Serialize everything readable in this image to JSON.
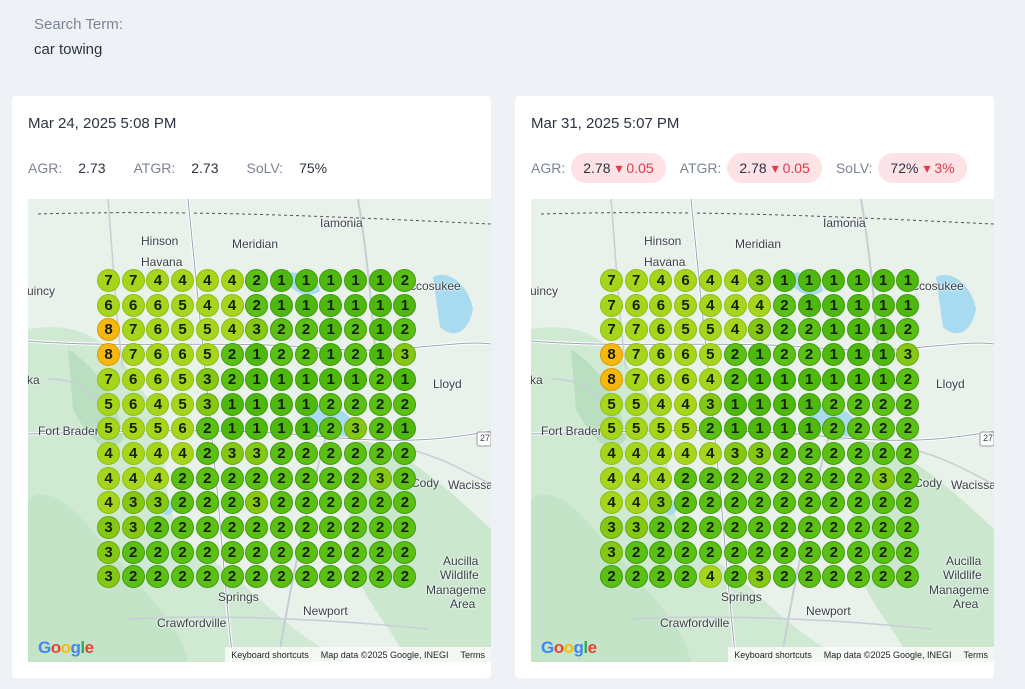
{
  "search": {
    "label": "Search Term:",
    "term": "car towing"
  },
  "cards": [
    {
      "date": "Mar 24, 2025 5:08 PM",
      "metrics": [
        {
          "label": "AGR:",
          "value": "2.73",
          "delta": ""
        },
        {
          "label": "ATGR:",
          "value": "2.73",
          "delta": ""
        },
        {
          "label": "SoLV:",
          "value": "75%",
          "delta": ""
        }
      ],
      "grid": [
        [
          7,
          7,
          4,
          4,
          4,
          4,
          2,
          1,
          1,
          1,
          1,
          1,
          2
        ],
        [
          6,
          6,
          6,
          5,
          4,
          4,
          2,
          1,
          1,
          1,
          1,
          1,
          1
        ],
        [
          8,
          7,
          6,
          5,
          5,
          4,
          3,
          2,
          2,
          1,
          2,
          1,
          2
        ],
        [
          8,
          7,
          6,
          6,
          5,
          2,
          1,
          2,
          2,
          1,
          2,
          1,
          3
        ],
        [
          7,
          6,
          6,
          5,
          3,
          2,
          1,
          1,
          1,
          1,
          1,
          2,
          1
        ],
        [
          5,
          6,
          4,
          5,
          3,
          1,
          1,
          1,
          1,
          2,
          2,
          2,
          2
        ],
        [
          5,
          5,
          5,
          6,
          2,
          1,
          1,
          1,
          1,
          2,
          3,
          2,
          1
        ],
        [
          4,
          4,
          4,
          4,
          2,
          3,
          3,
          2,
          2,
          2,
          2,
          2,
          2
        ],
        [
          4,
          4,
          4,
          2,
          2,
          2,
          2,
          2,
          2,
          2,
          2,
          3,
          2
        ],
        [
          4,
          3,
          3,
          2,
          2,
          2,
          3,
          2,
          2,
          2,
          2,
          2,
          2
        ],
        [
          3,
          3,
          2,
          2,
          2,
          2,
          2,
          2,
          2,
          2,
          2,
          2,
          2
        ],
        [
          3,
          2,
          2,
          2,
          2,
          2,
          2,
          2,
          2,
          2,
          2,
          2,
          2
        ],
        [
          3,
          2,
          2,
          2,
          2,
          2,
          2,
          2,
          2,
          2,
          2,
          2,
          2
        ]
      ]
    },
    {
      "date": "Mar 31, 2025 5:07 PM",
      "metrics": [
        {
          "label": "AGR:",
          "value": "2.78",
          "delta": "0.05"
        },
        {
          "label": "ATGR:",
          "value": "2.78",
          "delta": "0.05"
        },
        {
          "label": "SoLV:",
          "value": "72%",
          "delta": "3%"
        }
      ],
      "grid": [
        [
          7,
          7,
          4,
          6,
          4,
          4,
          3,
          1,
          1,
          1,
          1,
          1,
          1
        ],
        [
          7,
          6,
          6,
          5,
          4,
          4,
          4,
          2,
          1,
          1,
          1,
          1,
          1
        ],
        [
          7,
          7,
          6,
          5,
          5,
          4,
          3,
          2,
          2,
          1,
          1,
          1,
          2
        ],
        [
          8,
          7,
          6,
          6,
          5,
          2,
          1,
          2,
          2,
          1,
          1,
          1,
          3
        ],
        [
          8,
          7,
          6,
          6,
          4,
          2,
          1,
          1,
          1,
          1,
          1,
          1,
          2
        ],
        [
          5,
          5,
          4,
          4,
          3,
          1,
          1,
          1,
          1,
          2,
          2,
          2,
          2
        ],
        [
          5,
          5,
          5,
          5,
          2,
          1,
          1,
          1,
          1,
          2,
          2,
          2,
          2
        ],
        [
          4,
          4,
          4,
          4,
          4,
          3,
          3,
          2,
          2,
          2,
          2,
          2,
          2
        ],
        [
          4,
          4,
          4,
          2,
          2,
          2,
          2,
          2,
          2,
          2,
          2,
          3,
          2
        ],
        [
          4,
          4,
          3,
          2,
          2,
          2,
          2,
          2,
          2,
          2,
          2,
          2,
          2
        ],
        [
          3,
          3,
          2,
          2,
          2,
          2,
          2,
          2,
          2,
          2,
          2,
          2,
          2
        ],
        [
          3,
          2,
          2,
          2,
          2,
          2,
          2,
          2,
          2,
          2,
          2,
          2,
          2
        ],
        [
          2,
          2,
          2,
          2,
          4,
          2,
          3,
          2,
          2,
          2,
          2,
          2,
          2
        ]
      ]
    }
  ],
  "rank_colors": {
    "1": "#4fb80f",
    "2": "#5cbf13",
    "3": "#84c814",
    "4": "#a7d51c",
    "5": "#a7d51c",
    "6": "#a7d51c",
    "7": "#a7d51c",
    "8": "#f8b70d"
  },
  "map_labels": {
    "hinson": "Hinson",
    "havana": "Havana",
    "meridian": "Meridian",
    "iamonia": "Iamonia",
    "quincy": "uincy",
    "miccosukee": "ccosukee",
    "lloyd": "Lloyd",
    "fort_braden": "Fort Braden",
    "cody": "Cody",
    "wacissa": "Wacissa",
    "aucilla": "Aucilla",
    "wildlife": "Wildlife",
    "management": "Manageme",
    "area": "Area",
    "springs": "Springs",
    "newport": "Newport",
    "crawfordville": "Crawfordville",
    "ka": "ka",
    "highway_27": "27"
  },
  "map_footer": {
    "logo": "Google",
    "keyboard": "Keyboard shortcuts",
    "mapdata": "Map data ©2025 Google, INEGI",
    "terms": "Terms"
  }
}
